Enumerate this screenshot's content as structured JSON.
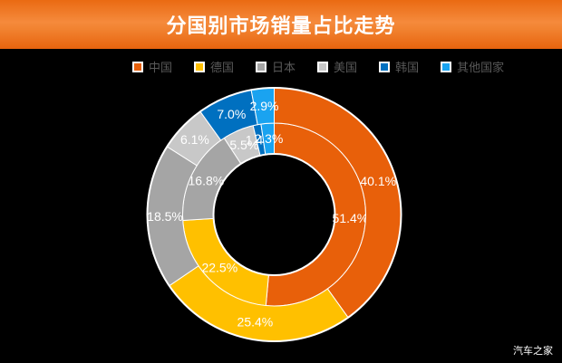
{
  "header": {
    "title": "分国别市场销量占比走势"
  },
  "legend": [
    {
      "label": "中国",
      "color": "#E8600A"
    },
    {
      "label": "德国",
      "color": "#FFC000"
    },
    {
      "label": "日本",
      "color": "#A5A5A5"
    },
    {
      "label": "美国",
      "color": "#C8C8C8"
    },
    {
      "label": "韩国",
      "color": "#0070C0"
    },
    {
      "label": "其他国家",
      "color": "#1AA3F0"
    }
  ],
  "watermark": "汽车之家",
  "chart_data": {
    "type": "pie",
    "subtype": "doughnut",
    "title": "分国别市场销量占比走势",
    "categories": [
      "中国",
      "德国",
      "日本",
      "美国",
      "韩国",
      "其他国家"
    ],
    "colors": [
      "#E8600A",
      "#FFC000",
      "#A5A5A5",
      "#C8C8C8",
      "#0070C0",
      "#1AA3F0"
    ],
    "series": [
      {
        "name": "inner ring",
        "values": [
          51.4,
          22.5,
          16.8,
          5.5,
          1.4,
          2.3
        ]
      },
      {
        "name": "outer ring",
        "values": [
          40.1,
          25.4,
          18.5,
          6.1,
          7.0,
          2.9
        ]
      }
    ],
    "unit": "%",
    "legend_position": "top"
  }
}
